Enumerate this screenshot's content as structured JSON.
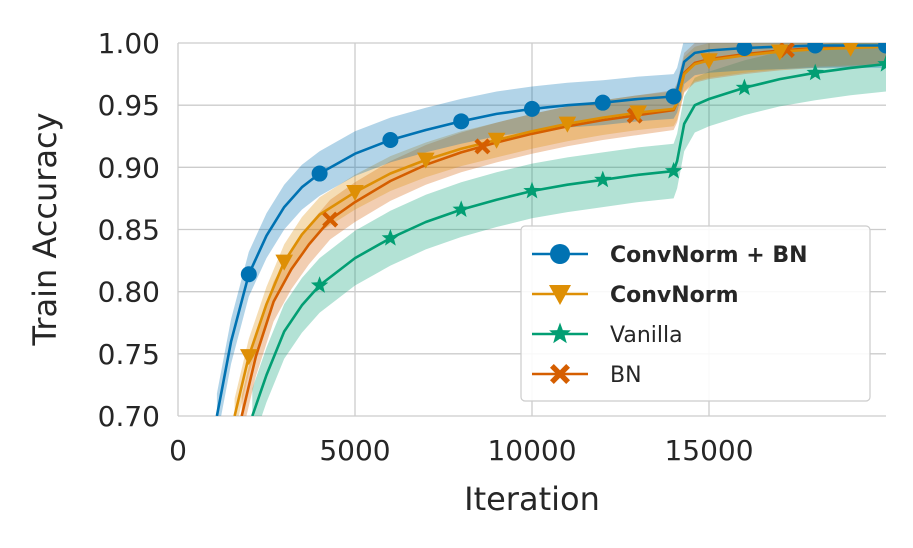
{
  "chart_data": {
    "type": "line",
    "title": "",
    "xlabel": "Iteration",
    "ylabel": "Train Accuracy",
    "xlim": [
      0,
      20000
    ],
    "ylim": [
      0.7,
      1.0
    ],
    "grid": true,
    "legend_position": "lower-right",
    "x_ticks": [
      0,
      5000,
      10000,
      15000
    ],
    "x_tick_labels": [
      "0",
      "5000",
      "10000",
      "15000"
    ],
    "y_ticks": [
      0.7,
      0.75,
      0.8,
      0.85,
      0.9,
      0.95,
      1.0
    ],
    "y_tick_labels": [
      "0.70",
      "0.75",
      "0.80",
      "0.85",
      "0.90",
      "0.95",
      "1.00"
    ],
    "series": [
      {
        "name": "ConvNorm + BN",
        "bold": true,
        "color": "#0072b2",
        "marker": "circle",
        "band": 0.018,
        "x": [
          1100,
          1500,
          2000,
          2500,
          3000,
          3500,
          4000,
          5000,
          6000,
          7000,
          8000,
          9000,
          10000,
          11000,
          12000,
          13000,
          14000,
          14100,
          14300,
          14600,
          15000,
          16000,
          17000,
          18000,
          19000,
          20000
        ],
        "y": [
          0.7,
          0.76,
          0.814,
          0.845,
          0.868,
          0.884,
          0.895,
          0.911,
          0.922,
          0.93,
          0.937,
          0.943,
          0.947,
          0.95,
          0.952,
          0.955,
          0.957,
          0.962,
          0.985,
          0.992,
          0.994,
          0.996,
          0.997,
          0.998,
          0.998,
          0.998
        ],
        "marker_x": [
          2000,
          4000,
          6000,
          8000,
          10000,
          12000,
          14000,
          16000,
          18000,
          20000
        ]
      },
      {
        "name": "ConvNorm",
        "bold": true,
        "color": "#de8f05",
        "marker": "triangle-down",
        "band": 0.014,
        "x": [
          1600,
          2000,
          2500,
          3000,
          3500,
          4000,
          5000,
          6000,
          7000,
          8000,
          9000,
          10000,
          11000,
          12000,
          13000,
          14000,
          14100,
          14300,
          14600,
          15000,
          16000,
          17000,
          18000,
          19000,
          20000
        ],
        "y": [
          0.7,
          0.748,
          0.79,
          0.824,
          0.846,
          0.862,
          0.88,
          0.895,
          0.906,
          0.915,
          0.922,
          0.929,
          0.935,
          0.94,
          0.944,
          0.947,
          0.952,
          0.975,
          0.983,
          0.986,
          0.99,
          0.993,
          0.995,
          0.996,
          0.997
        ],
        "marker_x": [
          2000,
          3000,
          5000,
          7000,
          9000,
          11000,
          13000,
          15000,
          17000,
          19000
        ]
      },
      {
        "name": "Vanilla",
        "bold": false,
        "color": "#029e73",
        "marker": "star",
        "band": 0.022,
        "x": [
          2100,
          2500,
          3000,
          3500,
          4000,
          5000,
          6000,
          7000,
          8000,
          9000,
          10000,
          11000,
          12000,
          13000,
          14000,
          14100,
          14300,
          14600,
          15000,
          16000,
          17000,
          18000,
          19000,
          20000
        ],
        "y": [
          0.7,
          0.733,
          0.768,
          0.789,
          0.805,
          0.827,
          0.843,
          0.856,
          0.866,
          0.874,
          0.881,
          0.886,
          0.89,
          0.894,
          0.897,
          0.905,
          0.935,
          0.95,
          0.955,
          0.964,
          0.971,
          0.976,
          0.98,
          0.983
        ],
        "marker_x": [
          4000,
          6000,
          8000,
          10000,
          12000,
          14000,
          16000,
          18000,
          20000
        ]
      },
      {
        "name": "BN",
        "bold": false,
        "color": "#d55e00",
        "marker": "x-filled",
        "band": 0.016,
        "x": [
          1800,
          2200,
          2700,
          3200,
          3700,
          4300,
          5000,
          6000,
          7000,
          8000,
          9000,
          10000,
          11000,
          12000,
          13000,
          14000,
          14100,
          14300,
          14600,
          15000,
          16000,
          17000,
          18000,
          19000,
          20000
        ],
        "y": [
          0.7,
          0.748,
          0.792,
          0.818,
          0.838,
          0.858,
          0.872,
          0.889,
          0.902,
          0.912,
          0.92,
          0.927,
          0.933,
          0.938,
          0.942,
          0.946,
          0.952,
          0.976,
          0.984,
          0.987,
          0.991,
          0.994,
          0.996,
          0.997,
          0.998
        ],
        "marker_x": [
          4300,
          8600,
          12900,
          17200
        ]
      }
    ]
  }
}
